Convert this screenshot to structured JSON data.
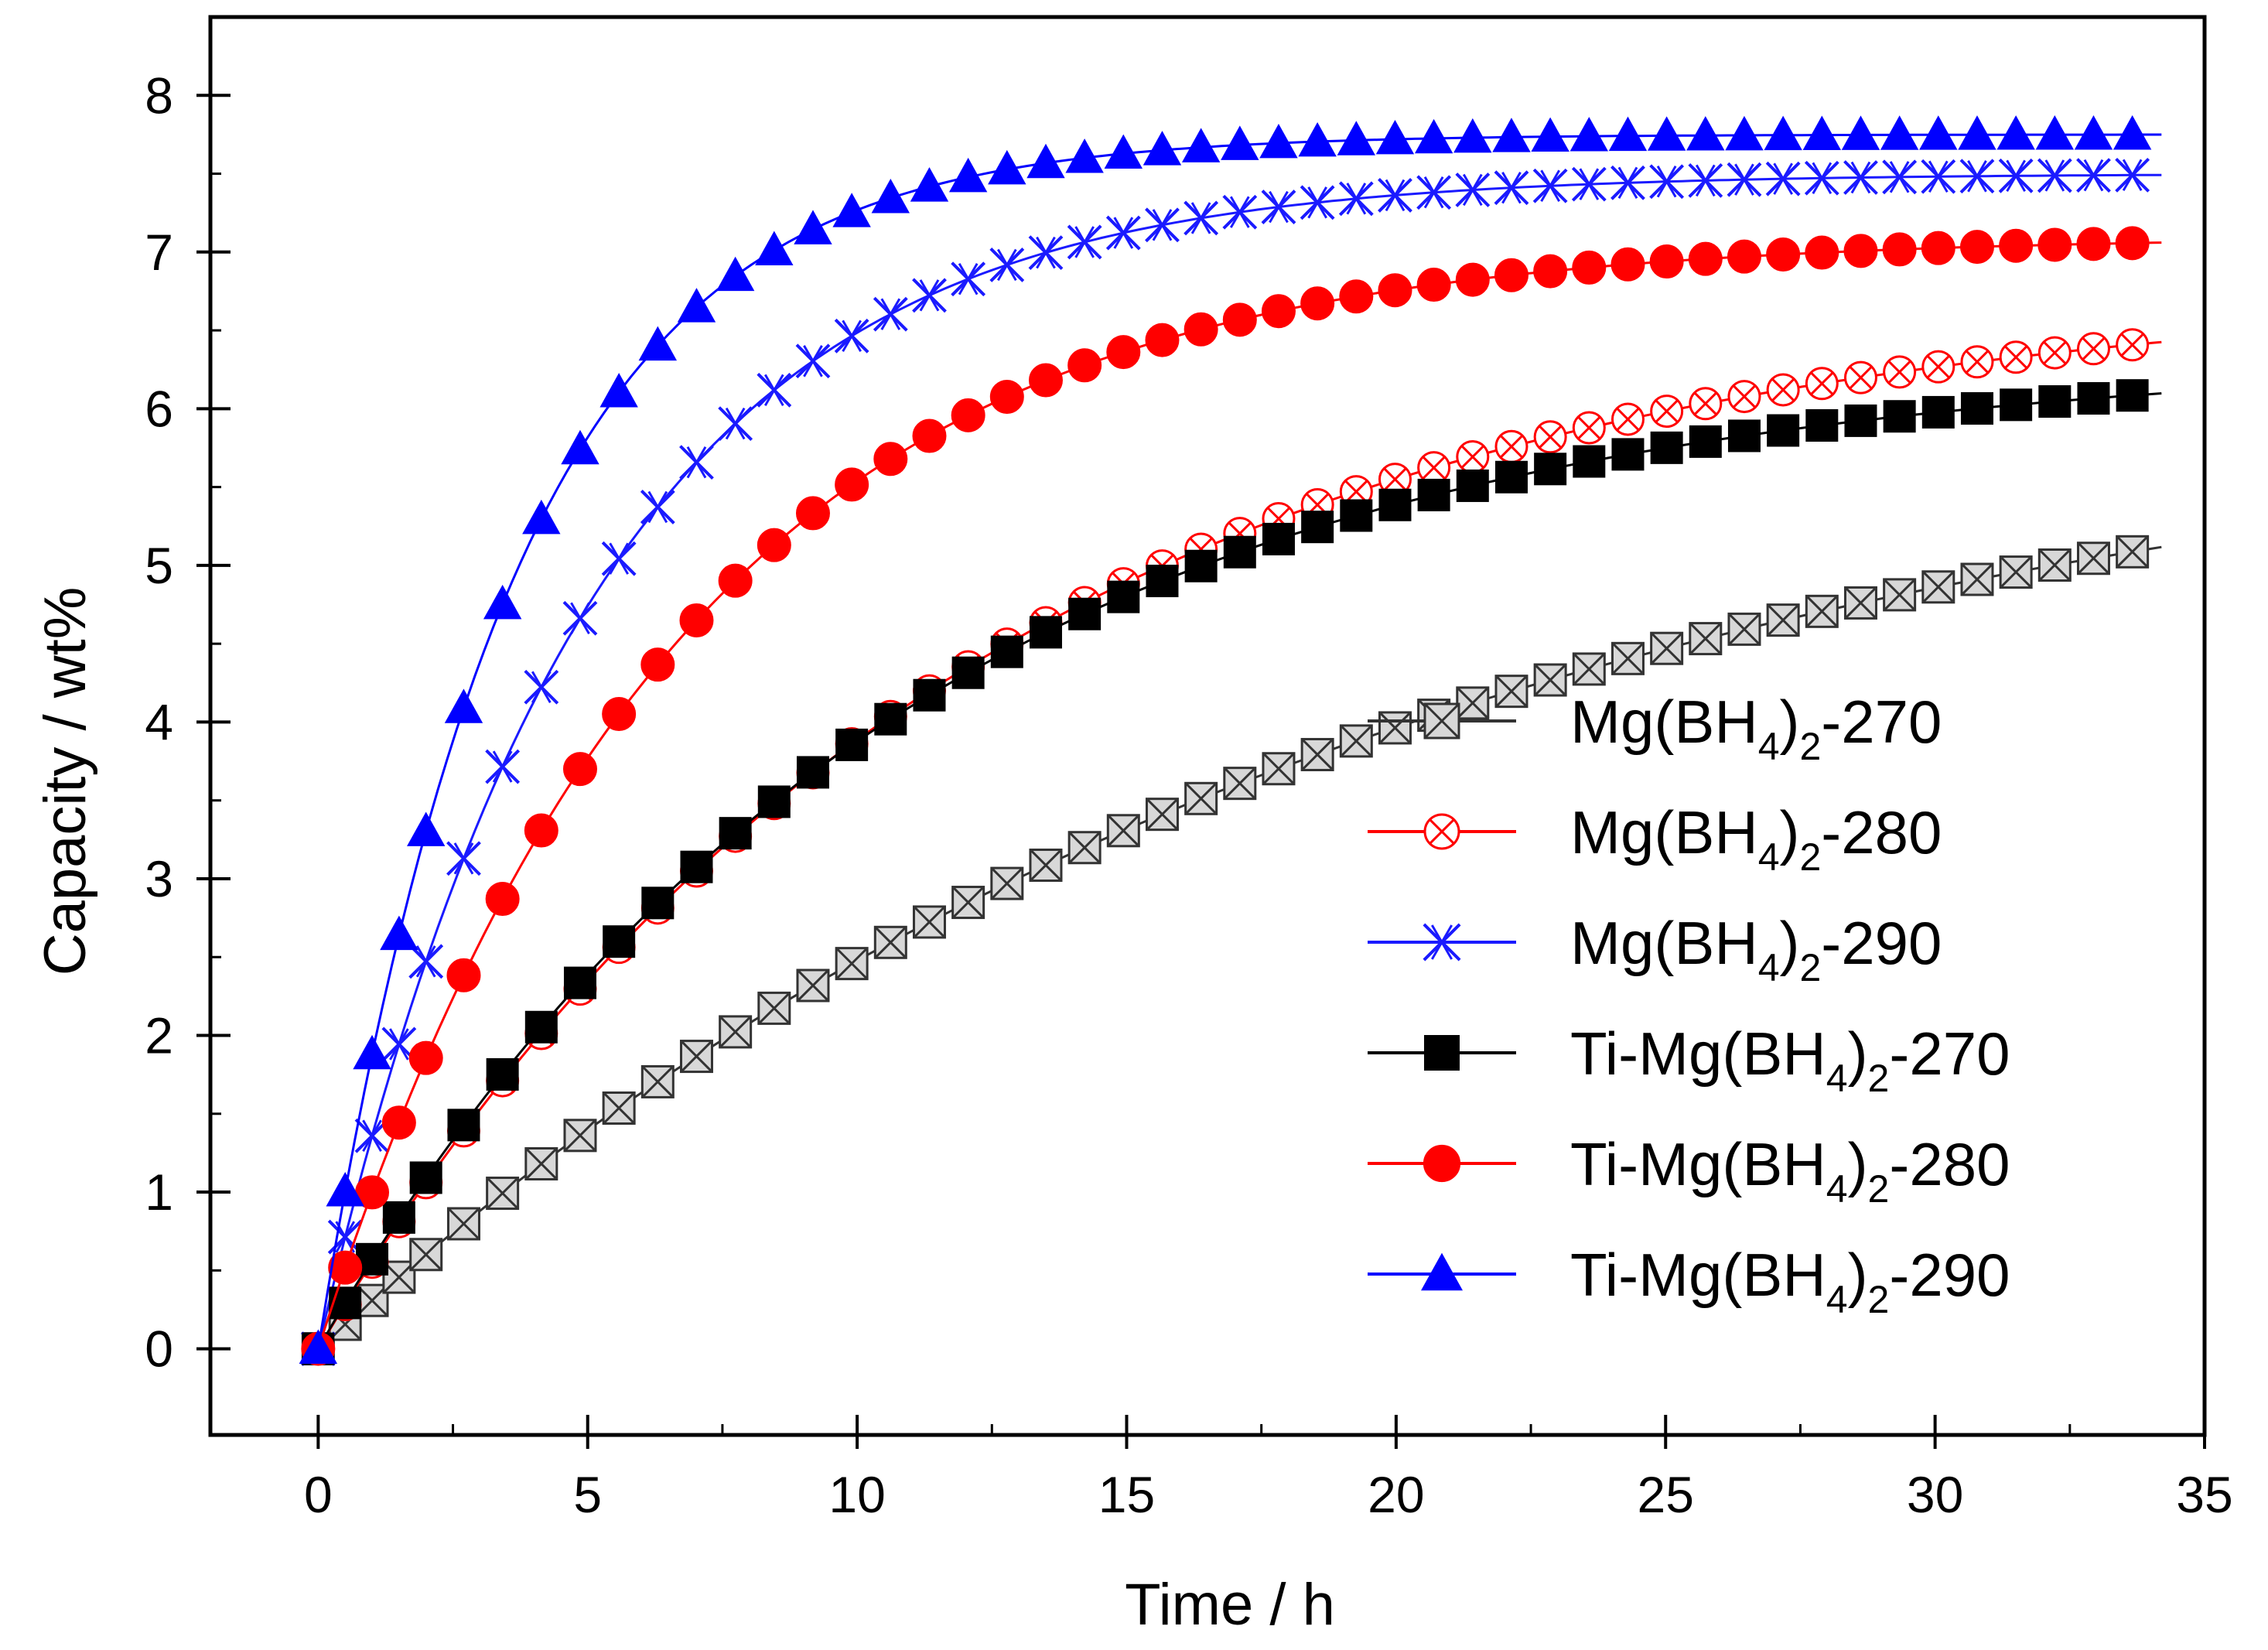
{
  "chart_data": {
    "type": "line",
    "title": "",
    "xlabel": "Time / h",
    "ylabel": "Capacity / wt%",
    "xlim": [
      -2,
      35
    ],
    "ylim": [
      -0.55,
      8.5
    ],
    "xticks": [
      0,
      5,
      10,
      15,
      20,
      25,
      30,
      35
    ],
    "yticks": [
      0,
      1,
      2,
      3,
      4,
      5,
      6,
      7,
      8
    ],
    "legend_position": "center-right",
    "series": [
      {
        "name": "Mg(BH4)2-270",
        "label_prefix": "Mg(BH",
        "label_sub": "4",
        "label_mid": ")",
        "label_sub2": "2",
        "label_suffix": "-270",
        "color": "#333333",
        "marker": "square-crossed",
        "marker_fill": "#d8d8d8",
        "max_wt": 6.2,
        "tau_h": 19.6,
        "end_h": 34.2
      },
      {
        "name": "Mg(BH4)2-280",
        "label_prefix": "Mg(BH",
        "label_sub": "4",
        "label_mid": ")",
        "label_sub2": "2",
        "label_suffix": "-280",
        "color": "#ff0000",
        "marker": "circle-crossed",
        "marker_fill": "#ffffff",
        "max_wt": 6.8,
        "tau_h": 11.8,
        "end_h": 34.2
      },
      {
        "name": "Mg(BH4)2-290",
        "label_prefix": "Mg(BH",
        "label_sub": "4",
        "label_mid": ")",
        "label_sub2": "2",
        "label_suffix": "-290",
        "color": "#1a1aff",
        "marker": "x-cross",
        "marker_fill": "#ffffff",
        "max_wt": 7.5,
        "tau_h": 5.0,
        "end_h": 34.2
      },
      {
        "name": "Ti-Mg(BH4)2-270",
        "label_prefix": "Ti-Mg(BH",
        "label_sub": "4",
        "label_mid": ")",
        "label_sub2": "2",
        "label_suffix": "-270",
        "color": "#000000",
        "marker": "square-filled",
        "marker_fill": "#000000",
        "max_wt": 6.35,
        "tau_h": 10.6,
        "end_h": 34.2
      },
      {
        "name": "Ti-Mg(BH4)2-280",
        "label_prefix": "Ti-Mg(BH",
        "label_sub": "4",
        "label_mid": ")",
        "label_sub2": "2",
        "label_suffix": "-280",
        "color": "#ff0000",
        "marker": "circle-filled",
        "marker_fill": "#ff0000",
        "max_wt": 7.1,
        "tau_h": 6.6,
        "end_h": 34.2
      },
      {
        "name": "Ti-Mg(BH4)2-290",
        "label_prefix": "Ti-Mg(BH",
        "label_sub": "4",
        "label_mid": ")",
        "label_sub2": "2",
        "label_suffix": "-290",
        "color": "#0000ff",
        "marker": "triangle-filled",
        "marker_fill": "#0000ff",
        "max_wt": 7.75,
        "tau_h": 3.6,
        "end_h": 34.2
      }
    ]
  }
}
